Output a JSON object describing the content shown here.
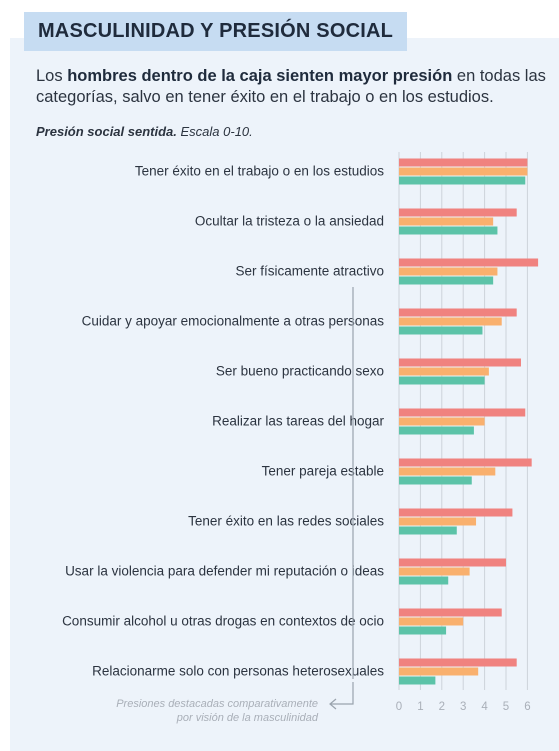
{
  "header": {
    "title": "MASCULINIDAD Y PRESIÓN SOCIAL",
    "subtitle_pre": "Los ",
    "subtitle_bold": "hombres dentro de la caja sienten mayor presión",
    "subtitle_post": " en todas las categorías, salvo en tener éxito en el trabajo o en los estudios.",
    "scale_bold": "Presión social sentida.",
    "scale_rest": " Escala 0-10."
  },
  "footnote": {
    "line1": "Presiones destacadas comparativamente",
    "line2": "por visión de la masculinidad"
  },
  "colors": {
    "series_red": "#f0827f",
    "series_orange": "#f9b06e",
    "series_green": "#5cc3a8",
    "grid": "#cdd3da",
    "tick_text": "#a9afb8"
  },
  "chart_data": {
    "type": "bar",
    "orientation": "horizontal",
    "categories": [
      "Tener éxito en el trabajo o en los estudios",
      "Ocultar la tristeza o la ansiedad",
      "Ser físicamente atractivo",
      "Cuidar y apoyar emocionalmente a otras personas",
      "Ser bueno practicando sexo",
      "Realizar las tareas del hogar",
      "Tener pareja estable",
      "Tener éxito en las redes sociales",
      "Usar la violencia para defender mi reputación o ideas",
      "Consumir alcohol u otras drogas en contextos de ocio",
      "Relacionarme solo con personas heterosexuales"
    ],
    "series": [
      {
        "color": "#f0827f",
        "values": [
          6.0,
          5.5,
          6.5,
          5.5,
          5.7,
          5.9,
          6.2,
          5.3,
          5.0,
          4.8,
          5.5
        ]
      },
      {
        "color": "#f9b06e",
        "values": [
          6.0,
          4.4,
          4.6,
          4.8,
          4.2,
          4.0,
          4.5,
          3.6,
          3.3,
          3.0,
          3.7
        ]
      },
      {
        "color": "#5cc3a8",
        "values": [
          5.9,
          4.6,
          4.4,
          3.9,
          4.0,
          3.5,
          3.4,
          2.7,
          2.3,
          2.2,
          1.7
        ]
      }
    ],
    "xlim": [
      0,
      6.5
    ],
    "xticks": [
      "0",
      "1",
      "2",
      "3",
      "4",
      "5",
      "6"
    ],
    "grid": true,
    "highlighted_range": [
      3,
      10
    ]
  }
}
